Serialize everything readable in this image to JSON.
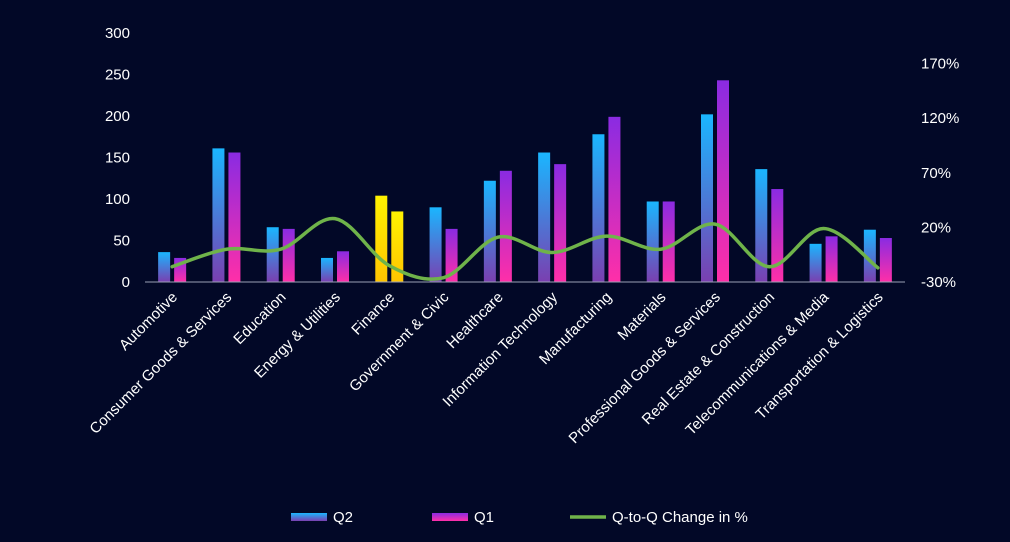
{
  "colors": {
    "background": "#020827",
    "q2_top": "#1ab6ff",
    "q2_bottom": "#7a3fb0",
    "q1_top": "#8a2be2",
    "q1_bottom": "#ff2fa8",
    "highlight_top": "#fff200",
    "highlight_bottom": "#ffc400",
    "line": "#6fb34a",
    "axis": "#9aa0b4"
  },
  "chart_data": {
    "type": "bar",
    "categories": [
      "Automotive",
      "Consumer Goods & Services",
      "Education",
      "Energy & Utilities",
      "Finance",
      "Government & Civic",
      "Healthcare",
      "Information Technology",
      "Manufacturing",
      "Materials",
      "Professional Goods & Services",
      "Real Estate & Construction",
      "Telecommunications & Media",
      "Transportation & Logistics"
    ],
    "highlight_category": "Finance",
    "series": [
      {
        "name": "Q2",
        "axis": "left",
        "type": "bar",
        "values": [
          36,
          161,
          66,
          29,
          104,
          90,
          122,
          156,
          178,
          97,
          202,
          136,
          46,
          63
        ]
      },
      {
        "name": "Q1",
        "axis": "left",
        "type": "bar",
        "values": [
          29,
          156,
          64,
          37,
          85,
          64,
          134,
          142,
          199,
          97,
          243,
          112,
          55,
          53
        ]
      },
      {
        "name": "Q-to-Q Change in %",
        "axis": "right",
        "type": "line",
        "values": [
          -16,
          0,
          0,
          28,
          -15,
          -26,
          11,
          -3,
          12,
          0,
          23,
          -16,
          19,
          -17
        ]
      }
    ],
    "ylim": [
      0,
      300
    ],
    "yticks": [
      0,
      50,
      100,
      150,
      200,
      250,
      300
    ],
    "y2lim": [
      -30,
      198
    ],
    "y2ticks": [
      -30,
      20,
      70,
      120,
      170
    ],
    "y2tick_labels": [
      "-30%",
      "20%",
      "70%",
      "120%",
      "170%"
    ],
    "legend": {
      "placement": "bottom",
      "entries": [
        "Q2",
        "Q1",
        "Q-to-Q Change in %"
      ]
    },
    "grid": false
  }
}
